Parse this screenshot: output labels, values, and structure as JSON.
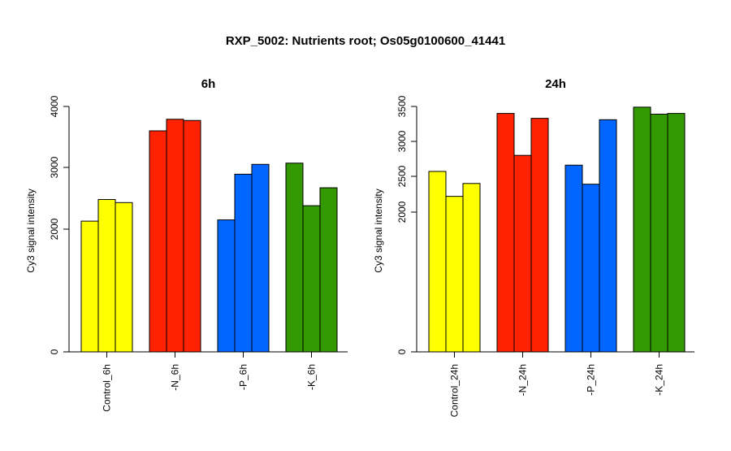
{
  "chart_data": {
    "title": "RXP_5002: Nutrients root; Os05g0100600_41441",
    "panels": [
      {
        "type": "bar",
        "title": "6h",
        "ylabel": "Cy3 signal intensity",
        "ylim": [
          0,
          4000
        ],
        "yticks": [
          0,
          2000,
          3000,
          4000
        ],
        "yscale": "piecewise",
        "grid": false,
        "groups": [
          {
            "label": "Control_6h",
            "color": "#ffff00",
            "values": [
              2130,
              2480,
              2430
            ]
          },
          {
            "label": "-N_6h",
            "color": "#ff2200",
            "values": [
              3600,
              3790,
              3770
            ]
          },
          {
            "label": "-P_6h",
            "color": "#0066ff",
            "values": [
              2150,
              2890,
              3050
            ]
          },
          {
            "label": "-K_6h",
            "color": "#339900",
            "values": [
              3070,
              2380,
              2670
            ]
          }
        ]
      },
      {
        "type": "bar",
        "title": "24h",
        "ylabel": "Cy3 signal intensity",
        "ylim": [
          0,
          3500
        ],
        "yticks": [
          0,
          2000,
          2500,
          3000,
          3500
        ],
        "yscale": "piecewise",
        "grid": false,
        "groups": [
          {
            "label": "Control_24h",
            "color": "#ffff00",
            "values": [
              2570,
              2220,
              2400
            ]
          },
          {
            "label": "-N_24h",
            "color": "#ff2200",
            "values": [
              3400,
              2800,
              3330
            ]
          },
          {
            "label": "-P_24h",
            "color": "#0066ff",
            "values": [
              2660,
              2390,
              3310
            ]
          },
          {
            "label": "-K_24h",
            "color": "#339900",
            "values": [
              3490,
              3390,
              3400
            ]
          }
        ]
      }
    ]
  }
}
